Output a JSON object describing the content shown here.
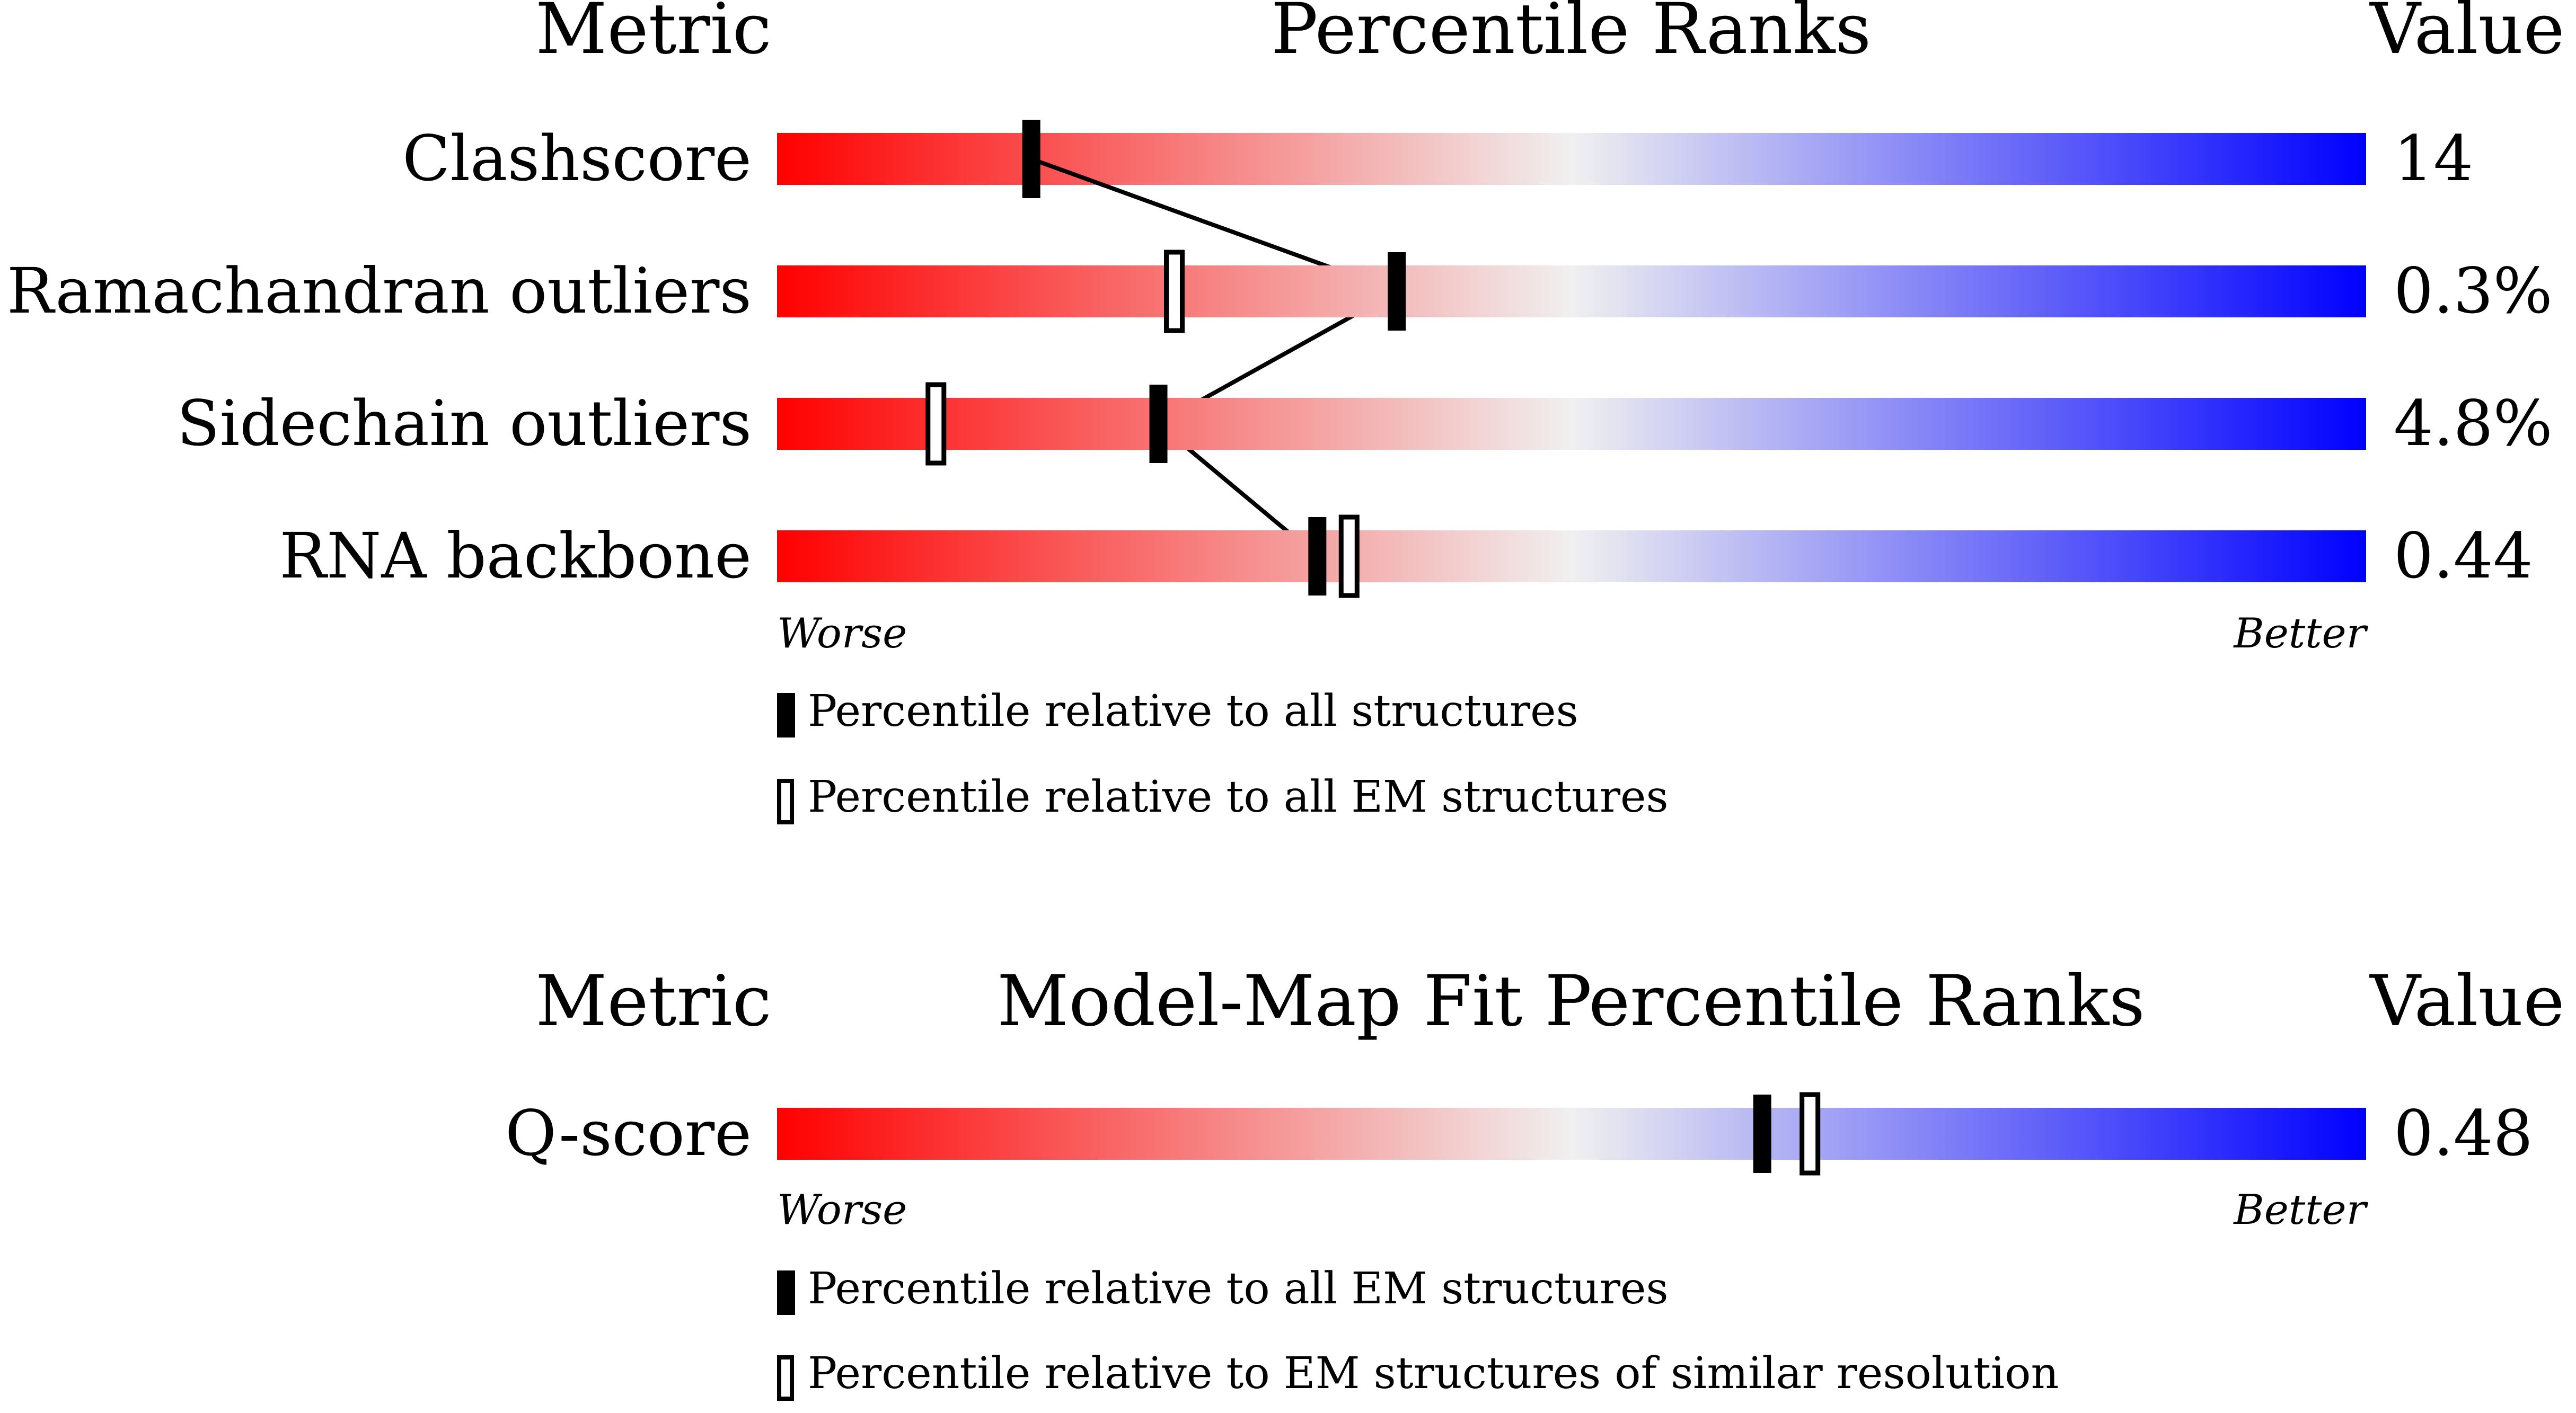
{
  "chart_data": [
    {
      "type": "percentile-slider",
      "headers": {
        "metric": "Metric",
        "title": "Percentile Ranks",
        "value": "Value"
      },
      "scale": {
        "min": 0,
        "max": 100,
        "left_label": "Worse",
        "right_label": "Better"
      },
      "colors": {
        "worse": "#ff0000",
        "mid": "#f0f0f0",
        "better": "#0000ff"
      },
      "rows": [
        {
          "metric": "Clashscore",
          "value": "14",
          "percentile_all": 16,
          "percentile_em": null
        },
        {
          "metric": "Ramachandran outliers",
          "value": "0.3%",
          "percentile_all": 39,
          "percentile_em": 25
        },
        {
          "metric": "Sidechain outliers",
          "value": "4.8%",
          "percentile_all": 24,
          "percentile_em": 10
        },
        {
          "metric": "RNA backbone",
          "value": "0.44",
          "percentile_all": 34,
          "percentile_em": 36
        }
      ],
      "connect_all_markers": true,
      "legend": [
        {
          "style": "filled",
          "text": "Percentile relative to all structures"
        },
        {
          "style": "open",
          "text": "Percentile relative to all EM structures"
        }
      ]
    },
    {
      "type": "percentile-slider",
      "headers": {
        "metric": "Metric",
        "title": "Model-Map Fit Percentile Ranks",
        "value": "Value"
      },
      "scale": {
        "min": 0,
        "max": 100,
        "left_label": "Worse",
        "right_label": "Better"
      },
      "colors": {
        "worse": "#ff0000",
        "mid": "#f0f0f0",
        "better": "#0000ff"
      },
      "rows": [
        {
          "metric": "Q-score",
          "value": "0.48",
          "percentile_all": 62,
          "percentile_em": 65
        }
      ],
      "connect_all_markers": false,
      "legend": [
        {
          "style": "filled",
          "text": "Percentile relative to all EM structures"
        },
        {
          "style": "open",
          "text": "Percentile relative to EM structures of similar resolution"
        }
      ]
    }
  ]
}
